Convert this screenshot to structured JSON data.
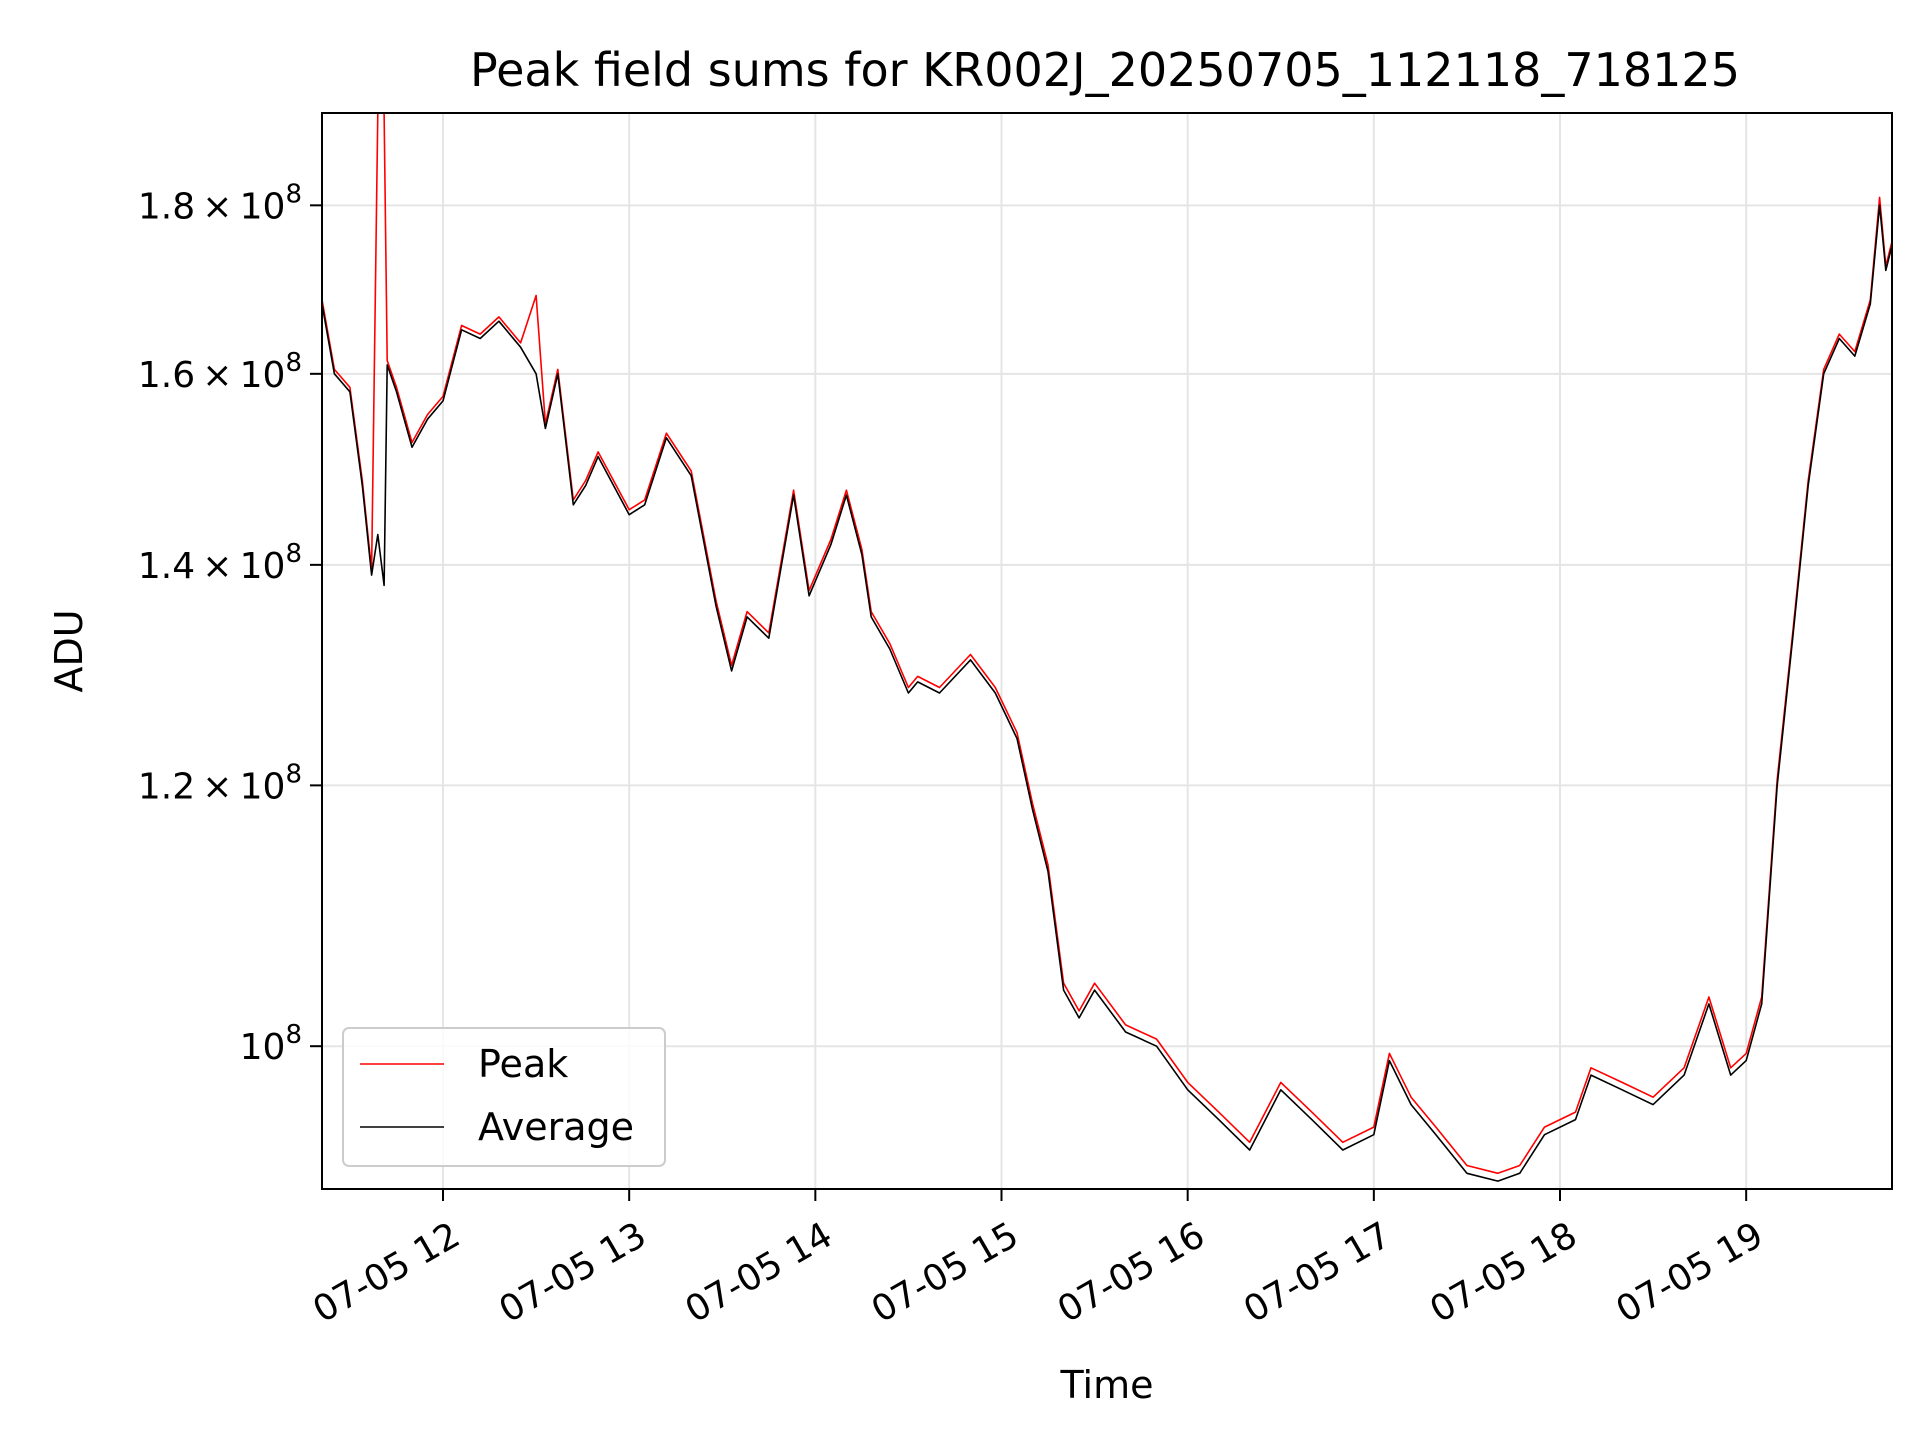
{
  "chart_data": {
    "type": "line",
    "title": "Peak field sums for KR002J_20250705_112118_718125",
    "xlabel": "Time",
    "ylabel": "ADU",
    "y_scale": "log",
    "ylim": [
      90500000,
      192000000
    ],
    "xlim": [
      "2025-07-05 11:21",
      "2025-07-05 19:47"
    ],
    "x_ticks": [
      "07-05 12",
      "07-05 13",
      "07-05 14",
      "07-05 15",
      "07-05 16",
      "07-05 17",
      "07-05 18",
      "07-05 19"
    ],
    "y_ticks": [
      {
        "value": 100000000,
        "mantissa": "",
        "exponent": "8"
      },
      {
        "value": 120000000,
        "mantissa": "1.2",
        "exponent": "8"
      },
      {
        "value": 140000000,
        "mantissa": "1.4",
        "exponent": "8"
      },
      {
        "value": 160000000,
        "mantissa": "1.6",
        "exponent": "8"
      },
      {
        "value": 180000000,
        "mantissa": "1.8",
        "exponent": "8"
      }
    ],
    "grid": true,
    "legend_position": "lower-left",
    "x": [
      "2025-07-05 11:21",
      "2025-07-05 11:25",
      "2025-07-05 11:30",
      "2025-07-05 11:34",
      "2025-07-05 11:37",
      "2025-07-05 11:39",
      "2025-07-05 11:41",
      "2025-07-05 11:42",
      "2025-07-05 11:45",
      "2025-07-05 11:50",
      "2025-07-05 11:55",
      "2025-07-05 12:00",
      "2025-07-05 12:06",
      "2025-07-05 12:12",
      "2025-07-05 12:18",
      "2025-07-05 12:25",
      "2025-07-05 12:30",
      "2025-07-05 12:33",
      "2025-07-05 12:37",
      "2025-07-05 12:42",
      "2025-07-05 12:46",
      "2025-07-05 12:50",
      "2025-07-05 13:00",
      "2025-07-05 13:05",
      "2025-07-05 13:12",
      "2025-07-05 13:20",
      "2025-07-05 13:28",
      "2025-07-05 13:33",
      "2025-07-05 13:38",
      "2025-07-05 13:45",
      "2025-07-05 13:53",
      "2025-07-05 13:58",
      "2025-07-05 14:05",
      "2025-07-05 14:10",
      "2025-07-05 14:15",
      "2025-07-05 14:18",
      "2025-07-05 14:24",
      "2025-07-05 14:30",
      "2025-07-05 14:33",
      "2025-07-05 14:40",
      "2025-07-05 14:50",
      "2025-07-05 14:58",
      "2025-07-05 15:05",
      "2025-07-05 15:10",
      "2025-07-05 15:15",
      "2025-07-05 15:20",
      "2025-07-05 15:25",
      "2025-07-05 15:30",
      "2025-07-05 15:40",
      "2025-07-05 15:50",
      "2025-07-05 16:00",
      "2025-07-05 16:10",
      "2025-07-05 16:20",
      "2025-07-05 16:30",
      "2025-07-05 16:40",
      "2025-07-05 16:50",
      "2025-07-05 17:00",
      "2025-07-05 17:05",
      "2025-07-05 17:12",
      "2025-07-05 17:20",
      "2025-07-05 17:30",
      "2025-07-05 17:40",
      "2025-07-05 17:47",
      "2025-07-05 17:55",
      "2025-07-05 18:05",
      "2025-07-05 18:10",
      "2025-07-05 18:20",
      "2025-07-05 18:30",
      "2025-07-05 18:40",
      "2025-07-05 18:48",
      "2025-07-05 18:55",
      "2025-07-05 19:00",
      "2025-07-05 19:05",
      "2025-07-05 19:10",
      "2025-07-05 19:15",
      "2025-07-05 19:20",
      "2025-07-05 19:25",
      "2025-07-05 19:30",
      "2025-07-05 19:35",
      "2025-07-05 19:40",
      "2025-07-05 19:43",
      "2025-07-05 19:45",
      "2025-07-05 19:47"
    ],
    "series": [
      {
        "name": "Average",
        "color": "#000000",
        "values": [
          168000000,
          160000000,
          158000000,
          148000000,
          139000000,
          143000000,
          138000000,
          161000000,
          158000000,
          152000000,
          155000000,
          157000000,
          165000000,
          164000000,
          166000000,
          163000000,
          160000000,
          154000000,
          160000000,
          146000000,
          148000000,
          151000000,
          145000000,
          146000000,
          153000000,
          149000000,
          136000000,
          130000000,
          135000000,
          133000000,
          147000000,
          137000000,
          142000000,
          147000000,
          141000000,
          135000000,
          132000000,
          128000000,
          129000000,
          128000000,
          131000000,
          128000000,
          124000000,
          118000000,
          113000000,
          104000000,
          102000000,
          104000000,
          101000000,
          100000000,
          97000000,
          95000000,
          93000000,
          97000000,
          95000000,
          93000000,
          94000000,
          99000000,
          96000000,
          94000000,
          91500000,
          91000000,
          91500000,
          94000000,
          95000000,
          98000000,
          97000000,
          96000000,
          98000000,
          103000000,
          98000000,
          99000000,
          103000000,
          120000000,
          133000000,
          148000000,
          160000000,
          164000000,
          162000000,
          168000000,
          180000000,
          172000000,
          175000000
        ]
      },
      {
        "name": "Peak",
        "color": "#ff0000",
        "values": [
          168500000,
          160500000,
          158500000,
          148500000,
          139500000,
          192000000,
          192000000,
          161500000,
          158500000,
          152500000,
          155500000,
          157500000,
          165500000,
          164500000,
          166500000,
          163500000,
          169000000,
          154500000,
          160500000,
          146500000,
          148500000,
          151500000,
          145500000,
          146500000,
          153500000,
          149500000,
          136500000,
          130500000,
          135500000,
          133500000,
          147500000,
          137500000,
          142500000,
          147500000,
          141500000,
          135500000,
          132500000,
          128500000,
          129500000,
          128500000,
          131500000,
          128500000,
          124500000,
          118500000,
          113500000,
          104500000,
          102500000,
          104500000,
          101500000,
          100500000,
          97500000,
          95500000,
          93500000,
          97500000,
          95500000,
          93500000,
          94500000,
          99500000,
          96500000,
          94500000,
          92000000,
          91500000,
          92000000,
          94500000,
          95500000,
          98500000,
          97500000,
          96500000,
          98500000,
          103500000,
          98500000,
          99500000,
          103500000,
          120500000,
          133500000,
          148500000,
          160500000,
          164500000,
          162500000,
          168500000,
          181000000,
          172500000,
          175500000
        ]
      }
    ]
  }
}
